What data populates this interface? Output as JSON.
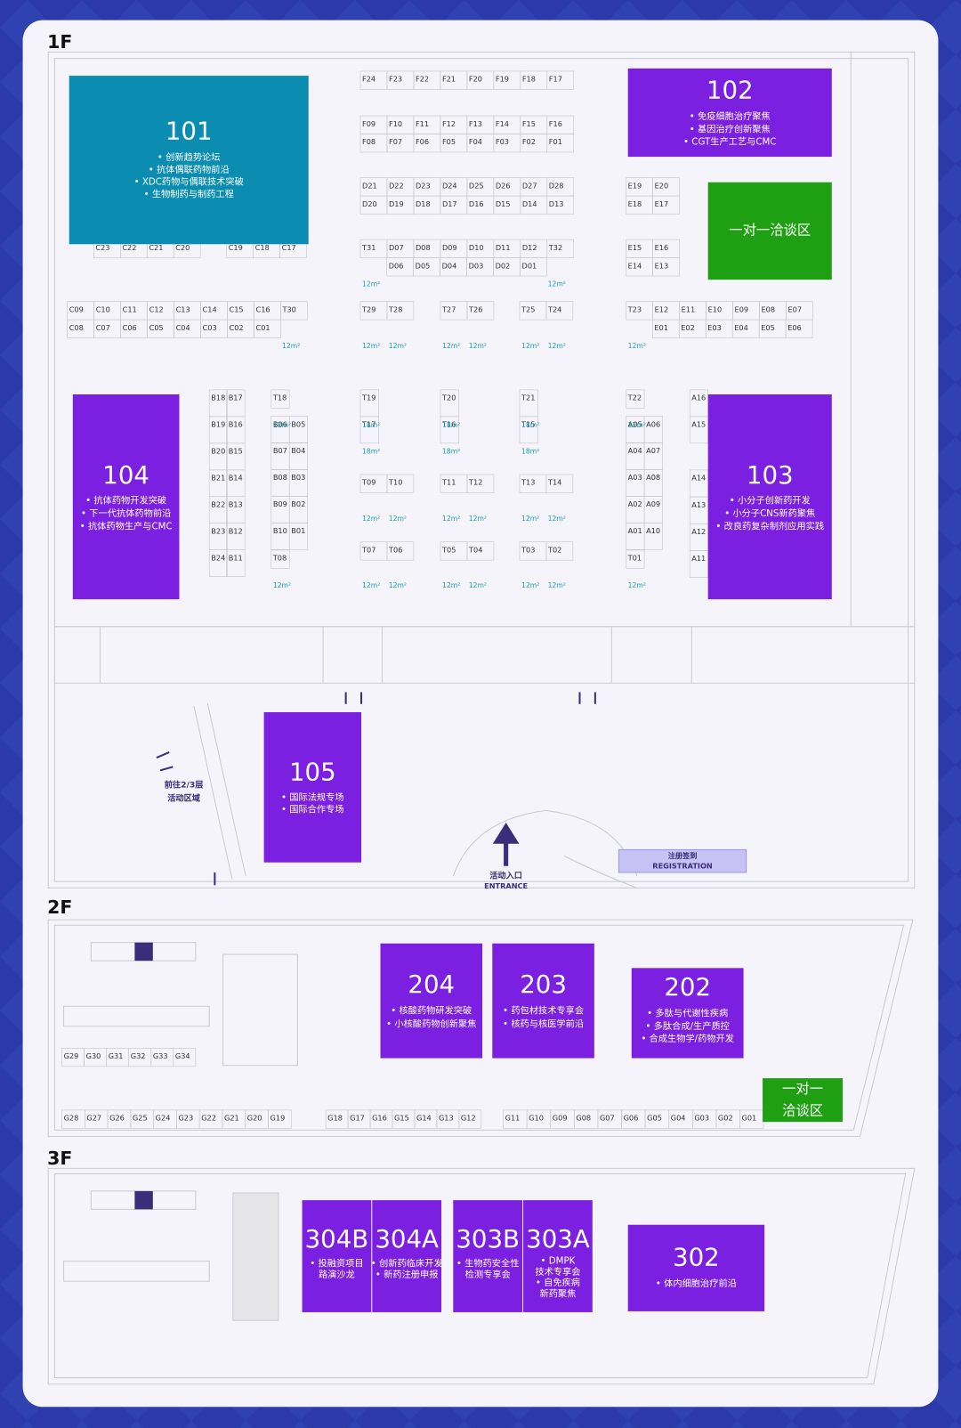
{
  "floors": [
    {
      "label": "1F",
      "halls": [
        {
          "number": "101",
          "topics": [
            "• 创新趋势论坛",
            "• 抗体偶联药物前沿",
            "• XDC药物与偶联技术突破",
            "• 生物制药与制药工程"
          ]
        },
        {
          "number": "102",
          "topics": [
            "• 免疫细胞治疗聚焦",
            "• 基因治疗创新聚焦",
            "• CGT生产工艺与CMC"
          ]
        },
        {
          "number": "104",
          "topics": [
            "• 抗体药物开发突破",
            "• 下一代抗体药物前沿",
            "• 抗体药物生产与CMC"
          ]
        },
        {
          "number": "103",
          "topics": [
            "• 小分子创新药开发",
            "• 小分子CNS新药聚焦",
            "• 改良药复杂制剂应用实践"
          ]
        },
        {
          "number": "105",
          "topics": [
            "• 国际法规专场",
            "• 国际合作专场"
          ]
        }
      ],
      "meeting_area": [
        "一对一洽谈区"
      ],
      "booth_rows": [
        [
          "F24",
          "F23",
          "F22",
          "F21",
          "F20",
          "F19",
          "F18",
          "F17"
        ],
        [
          "F09",
          "F10",
          "F11",
          "F12",
          "F13",
          "F14",
          "F15",
          "F16"
        ],
        [
          "F08",
          "F07",
          "F06",
          "F05",
          "F04",
          "F03",
          "F02",
          "F01"
        ],
        [
          "D21",
          "D22",
          "D23",
          "D24",
          "D25",
          "D26",
          "D27",
          "D28"
        ],
        [
          "D20",
          "D19",
          "D18",
          "D17",
          "D16",
          "D15",
          "D14",
          "D13"
        ],
        [
          "T31",
          "D07",
          "D08",
          "D09",
          "D10",
          "D11",
          "D12",
          "T32"
        ],
        [
          "D06",
          "D05",
          "D04",
          "D03",
          "D02",
          "D01"
        ],
        [
          "C23",
          "C22",
          "C21",
          "C20"
        ],
        [
          "C19",
          "C18",
          "C17"
        ],
        [
          "C09",
          "C10",
          "C11",
          "C12",
          "C13",
          "C14",
          "C15",
          "C16",
          "T30"
        ],
        [
          "C08",
          "C07",
          "C06",
          "C05",
          "C04",
          "C03",
          "C02",
          "C01"
        ],
        [
          "T29",
          "T28"
        ],
        [
          "T27",
          "T26"
        ],
        [
          "T25",
          "T24"
        ],
        [
          "E19",
          "E20"
        ],
        [
          "E18",
          "E17"
        ],
        [
          "E15",
          "E16"
        ],
        [
          "E14",
          "E13"
        ],
        [
          "T23",
          "E12",
          "E11",
          "E10",
          "E09",
          "E08",
          "E07"
        ],
        [
          "E01",
          "E02",
          "E03",
          "E04",
          "E05",
          "E06"
        ],
        [
          "B18",
          "B19",
          "B20",
          "B21",
          "B22",
          "B23",
          "B24"
        ],
        [
          "B17",
          "B16",
          "B15",
          "B14",
          "B13",
          "B12",
          "B11"
        ],
        [
          "T18"
        ],
        [
          "B06",
          "B07",
          "B08",
          "B09",
          "B10"
        ],
        [
          "B05",
          "B04",
          "B03",
          "B02",
          "B01"
        ],
        [
          "T08"
        ],
        [
          "T19",
          "T17"
        ],
        [
          "T20",
          "T16"
        ],
        [
          "T21",
          "T15"
        ],
        [
          "T09",
          "T10"
        ],
        [
          "T11",
          "T12"
        ],
        [
          "T13",
          "T14"
        ],
        [
          "T07",
          "T06"
        ],
        [
          "T05",
          "T04"
        ],
        [
          "T03",
          "T02"
        ],
        [
          "T22"
        ],
        [
          "A05",
          "A04",
          "A03",
          "A02",
          "A01"
        ],
        [
          "A06",
          "A07",
          "A08",
          "A09",
          "A10"
        ],
        [
          "T01"
        ],
        [
          "A16",
          "A15"
        ],
        [
          "A14",
          "A13",
          "A12",
          "A11"
        ]
      ],
      "area_labels": [
        "12m²",
        "12m²",
        "12m²",
        "12m²",
        "12m²",
        "12m²",
        "12m²",
        "12m²",
        "12m²",
        "12m²",
        "12m²",
        "12m²",
        "18m²",
        "18m²",
        "18m²",
        "18m²",
        "18m²",
        "18m²",
        "12m²",
        "12m²",
        "12m²",
        "12m²",
        "12m²",
        "12m²",
        "12m²",
        "12m²",
        "12m²",
        "12m²",
        "12m²",
        "12m²",
        "12m²",
        "12m²"
      ],
      "signs": {
        "stairs": [
          "前往2/3层",
          "活动区域"
        ],
        "entrance": [
          "活动入口",
          "ENTRANCE"
        ],
        "registration": [
          "注册签到",
          "REGISTRATION"
        ]
      }
    },
    {
      "label": "2F",
      "halls": [
        {
          "number": "204",
          "topics": [
            "• 核酸药物研发突破",
            "• 小核酸药物创新聚焦"
          ]
        },
        {
          "number": "203",
          "topics": [
            "• 药包材技术专享会",
            "• 核药与核医学前沿"
          ]
        },
        {
          "number": "202",
          "topics": [
            "• 多肽与代谢性疾病",
            "• 多肽合成/生产质控",
            "• 合成生物学/药物开发"
          ]
        }
      ],
      "meeting_area": [
        "一对一",
        "洽谈区"
      ],
      "booth_rows": [
        [
          "G29",
          "G30",
          "G31",
          "G32",
          "G33",
          "G34"
        ],
        [
          "G28",
          "G27",
          "G26",
          "G25",
          "G24",
          "G23",
          "G22",
          "G21",
          "G20",
          "G19"
        ],
        [
          "G18",
          "G17",
          "G16",
          "G15",
          "G14",
          "G13",
          "G12"
        ],
        [
          "G11",
          "G10",
          "G09",
          "G08",
          "G07",
          "G06",
          "G05",
          "G04",
          "G03",
          "G02",
          "G01"
        ]
      ]
    },
    {
      "label": "3F",
      "halls": [
        {
          "number": "304B",
          "topics": [
            "• 投融资项目",
            "路演沙龙"
          ]
        },
        {
          "number": "304A",
          "topics": [
            "• 创新药临床开发",
            "• 新药注册申报"
          ]
        },
        {
          "number": "303B",
          "topics": [
            "• 生物药安全性",
            "检测专享会"
          ]
        },
        {
          "number": "303A",
          "topics": [
            "• DMPK",
            "技术专享会",
            "• 自免疾病",
            "新药聚焦"
          ]
        },
        {
          "number": "302",
          "topics": [
            "• 体内细胞治疗前沿"
          ]
        }
      ]
    }
  ]
}
